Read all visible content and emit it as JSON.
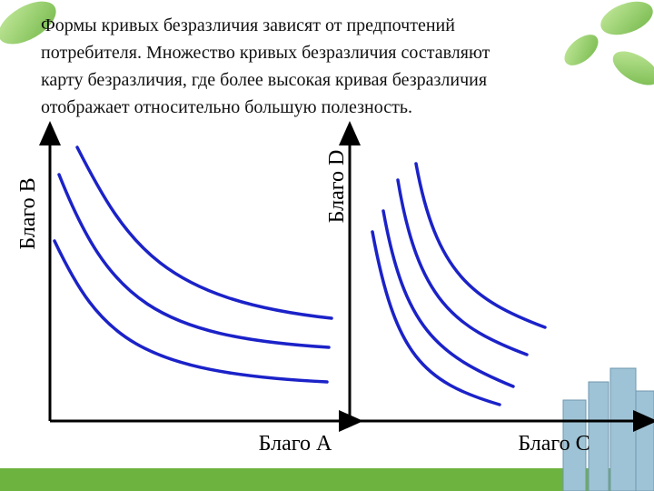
{
  "text": {
    "lines": [
      "Формы кривых безразличия зависят от предпочтений",
      "потребителя. Множество кривых безразличия составляют",
      "карту безразличия, где более высокая кривая безразличия",
      "отображает относительно большую полезность."
    ]
  },
  "left_diagram": {
    "y_label": "Благо B",
    "x_label": "Благо A"
  },
  "right_diagram": {
    "y_label": "Благо D",
    "x_label": "Благо C"
  }
}
